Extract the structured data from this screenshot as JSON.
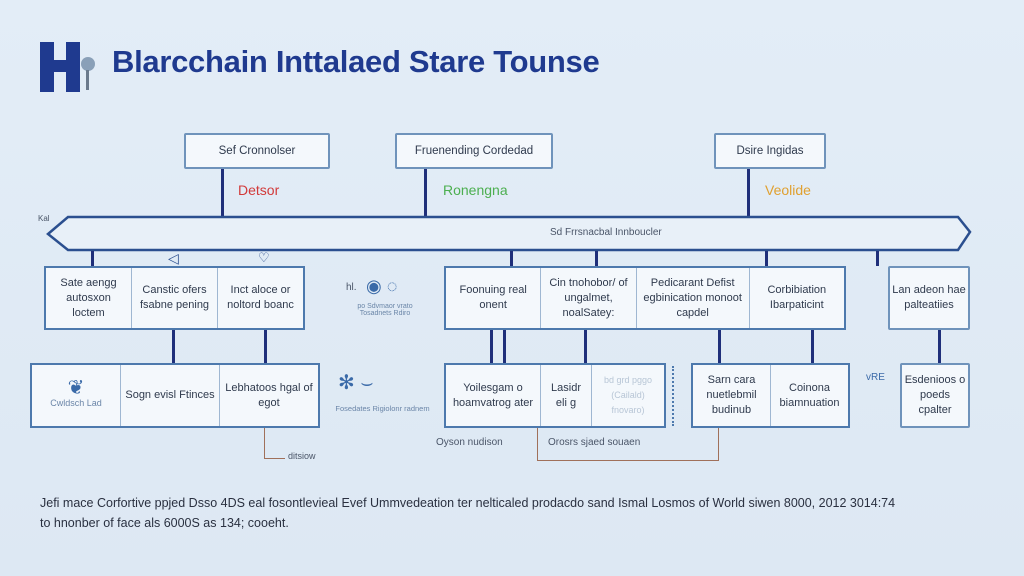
{
  "title": "Blarcchain Inttalaed Stare Tounse",
  "colors": {
    "title": "#1f3a8f",
    "bus": "#2b4f8f",
    "red": "#d23a3a",
    "green": "#4caf50",
    "orange": "#e0a030"
  },
  "top_boxes": [
    {
      "label": "Sef Cronnolser",
      "tag": "Detsor"
    },
    {
      "label": "Fruenending Cordedad",
      "tag": "Ronengna"
    },
    {
      "label": "Dsire Ingidas",
      "tag": "Veolide"
    }
  ],
  "bus": {
    "label": "Sd Frrsnacbal Innboucler",
    "left_tag": "Kal"
  },
  "row2": {
    "left": [
      "Sate aengg autosxon loctem",
      "Canstic ofers fsabne pening",
      "Inct aloce or noltord boanc"
    ],
    "icon_caption": "po Sdvmaor vrato Tosadnets Rdiro",
    "icon_tag": "hl.",
    "middle": [
      "Foonuing real onent",
      "Cin tnohobor/ of ungalmet, noalSatey:",
      "Pedicarant Defist egbinication monoot capdel",
      "Corbibiation Ibarpaticint"
    ],
    "right": "Lan adeon hae palteatiies"
  },
  "row3": {
    "left_icon_caption": "Cwldsch Lad",
    "left": [
      "Sogn evisl Ftinces",
      "Lebhatoos hgal of egot"
    ],
    "icon_caption": "Fosedates Rigiolonr radnem",
    "middle": [
      "Yoilesgam o hoamvatrog ater",
      "Lasidr eli g",
      "bd grd pggo (Cailald) fnovaro)"
    ],
    "middle2": [
      "Sarn cara nuetlebmil budinub",
      "Coinona biamnuation"
    ],
    "right_tag": "vRE",
    "right": "Esdenioos o poeds cpalter",
    "notes": [
      "Oyson nudison",
      "Orosrs sjaed souaen",
      "ditsiow"
    ]
  },
  "footer": [
    "Jefi mace Corfortive ppjed Dsso 4DS eal fosontlevieal Evef Ummvedeation ter nelticaled prodacdo sand Ismal Losmos of World siwen 8000, 2012 3014:74",
    "to hnonber of face als 6000S as 134; cooeht."
  ]
}
